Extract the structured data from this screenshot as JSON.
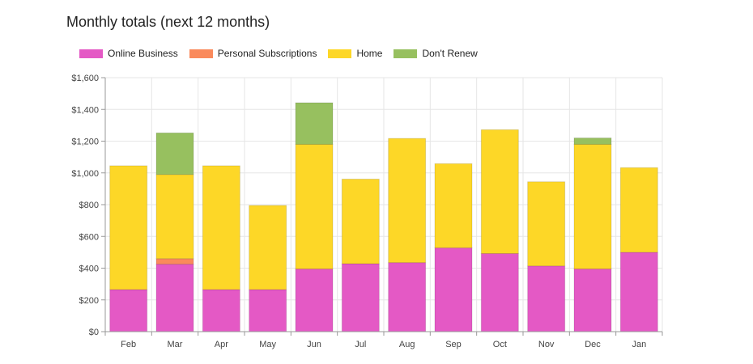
{
  "title": "Monthly totals (next 12 months)",
  "legend": {
    "items": [
      {
        "name": "Online Business",
        "color": "#e459c5"
      },
      {
        "name": "Personal Subscriptions",
        "color": "#fa8a5c"
      },
      {
        "name": "Home",
        "color": "#fdd727"
      },
      {
        "name": "Don't Renew",
        "color": "#97c05f"
      }
    ]
  },
  "chart_data": {
    "type": "bar",
    "stacked": true,
    "title": "Monthly totals (next 12 months)",
    "categories": [
      "Feb",
      "Mar",
      "Apr",
      "May",
      "Jun",
      "Jul",
      "Aug",
      "Sep",
      "Oct",
      "Nov",
      "Dec",
      "Jan"
    ],
    "series": [
      {
        "name": "Online Business",
        "color": "#e459c5",
        "values": [
          265,
          425,
          265,
          265,
          395,
          428,
          435,
          528,
          492,
          414,
          395,
          500
        ]
      },
      {
        "name": "Personal Subscriptions",
        "color": "#fa8a5c",
        "values": [
          0,
          35,
          0,
          0,
          0,
          0,
          0,
          0,
          0,
          0,
          0,
          0
        ]
      },
      {
        "name": "Home",
        "color": "#fdd727",
        "values": [
          780,
          530,
          780,
          530,
          785,
          533,
          782,
          530,
          780,
          530,
          785,
          533
        ]
      },
      {
        "name": "Don't Renew",
        "color": "#97c05f",
        "values": [
          0,
          262,
          0,
          0,
          262,
          0,
          0,
          0,
          0,
          0,
          40,
          0
        ]
      }
    ],
    "ylim": [
      0,
      1600
    ],
    "yticks": [
      0,
      200,
      400,
      600,
      800,
      1000,
      1200,
      1400,
      1600
    ],
    "ytick_labels": [
      "$0",
      "$200",
      "$400",
      "$600",
      "$800",
      "$1,000",
      "$1,200",
      "$1,400",
      "$1,600"
    ],
    "xlabel": "",
    "ylabel": "",
    "grid": true,
    "legend_position": "top-left"
  }
}
